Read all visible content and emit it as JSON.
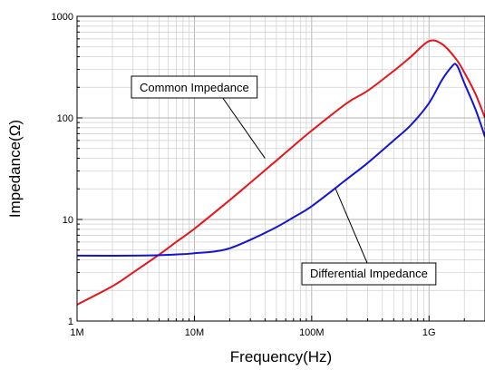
{
  "chart_data": {
    "type": "line",
    "title": "",
    "xlabel": "Frequency(Hz)",
    "ylabel": "Impedance(Ω)",
    "x_scale": "log",
    "y_scale": "log",
    "xlim": [
      1000000,
      3000000000
    ],
    "ylim": [
      1,
      1000
    ],
    "grid": true,
    "x_ticks": [
      {
        "value": 1000000,
        "label": "1M"
      },
      {
        "value": 10000000,
        "label": "10M"
      },
      {
        "value": 100000000,
        "label": "100M"
      },
      {
        "value": 1000000000,
        "label": "1G"
      }
    ],
    "y_ticks": [
      {
        "value": 1,
        "label": "1"
      },
      {
        "value": 10,
        "label": "10"
      },
      {
        "value": 100,
        "label": "100"
      },
      {
        "value": 1000,
        "label": "1000"
      }
    ],
    "series": [
      {
        "name": "Common Impedance",
        "color": "#e8141c",
        "x": [
          1000000,
          2000000,
          3000000,
          5000000,
          7000000,
          10000000,
          20000000,
          30000000,
          50000000,
          70000000,
          100000000,
          200000000,
          300000000,
          500000000,
          700000000,
          1000000000,
          1300000000,
          1700000000,
          2000000000,
          2500000000,
          3000000000
        ],
        "y": [
          1.45,
          2.2,
          3.0,
          4.5,
          6.0,
          8.1,
          15.5,
          23,
          38,
          53,
          75,
          140,
          185,
          290,
          400,
          570,
          530,
          380,
          280,
          170,
          100
        ]
      },
      {
        "name": "Differential Impedance",
        "color": "#1414d2",
        "x": [
          1000000,
          3000000,
          5000000,
          8000000,
          10000000,
          15000000,
          20000000,
          30000000,
          50000000,
          70000000,
          100000000,
          200000000,
          300000000,
          500000000,
          700000000,
          1000000000,
          1300000000,
          1600000000,
          1700000000,
          1800000000,
          2000000000,
          2500000000,
          3000000000
        ],
        "y": [
          4.4,
          4.4,
          4.45,
          4.55,
          4.65,
          4.85,
          5.2,
          6.3,
          8.4,
          10.5,
          13.5,
          25,
          36,
          60,
          85,
          140,
          240,
          330,
          335,
          300,
          220,
          120,
          65
        ]
      }
    ],
    "annotations": [
      {
        "text": "Common Impedance",
        "x": 40000000,
        "y": 40
      },
      {
        "text": "Differential Impedance",
        "x": 160000000,
        "y": 20
      }
    ]
  }
}
